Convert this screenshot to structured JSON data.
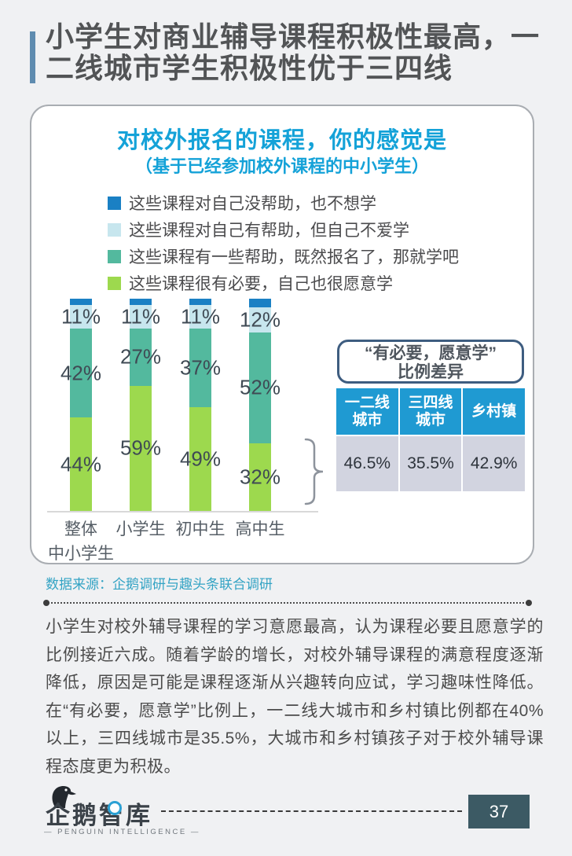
{
  "page": {
    "background": "#f0f1f3",
    "heading": {
      "title": "小学生对商业辅导课程积极性最高，一二线城市学生积极性优于三四线",
      "accent_color": "#5f8cb0",
      "text_color": "#525456"
    },
    "source_note": "数据来源：企鹅调研与趣头条联合调研",
    "body_text": "小学生对校外辅导课程的学习意愿最高，认为课程必要且愿意学的比例接近六成。随着学龄的增长，对校外辅导课程的满意程度逐渐降低，原因是可能是课程逐渐从兴趣转向应试，学习趣味性降低。在“有必要，愿意学”比例上，一二线大城市和乡村镇比例都在40%以上，三四线城市是35.5%，大城市和乡村镇孩子对于校外辅导课程态度更为积极。",
    "footer": {
      "logo_cn": "企鹅智库",
      "logo_en": "— PENGUIN INTELLIGENCE —",
      "page_number": "37",
      "page_box_color": "#3c5a64"
    }
  },
  "chart_data": [
    {
      "type": "bar",
      "stacked": true,
      "unit": "%",
      "title": "对校外报名的课程，你的感觉是",
      "subtitle": "（基于已经参加校外课程的中小学生）",
      "ylim": [
        0,
        100
      ],
      "grid": false,
      "legend_position": "top-left",
      "categories": [
        "整体中小学生",
        "小学生",
        "初中生",
        "高中生"
      ],
      "category_display_lines": [
        [
          "整体",
          "中小学生"
        ],
        [
          "小学生"
        ],
        [
          "初中生"
        ],
        [
          "高中生"
        ]
      ],
      "series": [
        {
          "name": "这些课程对自己没帮助，也不想学",
          "color": "#1a80c4",
          "values": [
            3,
            3,
            3,
            4
          ],
          "labels_shown": false,
          "estimated": true
        },
        {
          "name": "这些课程对自己有帮助，但自己不爱学",
          "color": "#c7e6ee",
          "values": [
            11,
            11,
            11,
            12
          ],
          "labels_shown": true
        },
        {
          "name": "这些课程有一些帮助，既然报名了，那就学吧",
          "color": "#53b99e",
          "values": [
            42,
            27,
            37,
            52
          ],
          "labels_shown": true
        },
        {
          "name": "这些课程很有必要，自己也很愿意学",
          "color": "#9dd94e",
          "values": [
            44,
            59,
            49,
            32
          ],
          "labels_shown": true
        }
      ]
    },
    {
      "type": "table",
      "title": "“有必要，愿意学”比例差异",
      "title_lines": [
        "“有必要，愿意学”",
        "比例差异"
      ],
      "columns": [
        "一二线城市",
        "三四线城市",
        "乡村镇"
      ],
      "column_display_lines": [
        [
          "一二线",
          "城市"
        ],
        [
          "三四线",
          "城市"
        ],
        [
          "乡村镇"
        ]
      ],
      "rows": [
        [
          "46.5%",
          "35.5%",
          "42.9%"
        ]
      ],
      "header_bg": "#1f9ad2",
      "value_bg": "#d2d4e0"
    }
  ],
  "colors": {
    "card_title_blue": "#14a2d8",
    "heading_accent": "#5f8cb0",
    "source_text": "#33a3c4",
    "bracket": "#8d939c",
    "axis_line": "#d8d8d8"
  }
}
